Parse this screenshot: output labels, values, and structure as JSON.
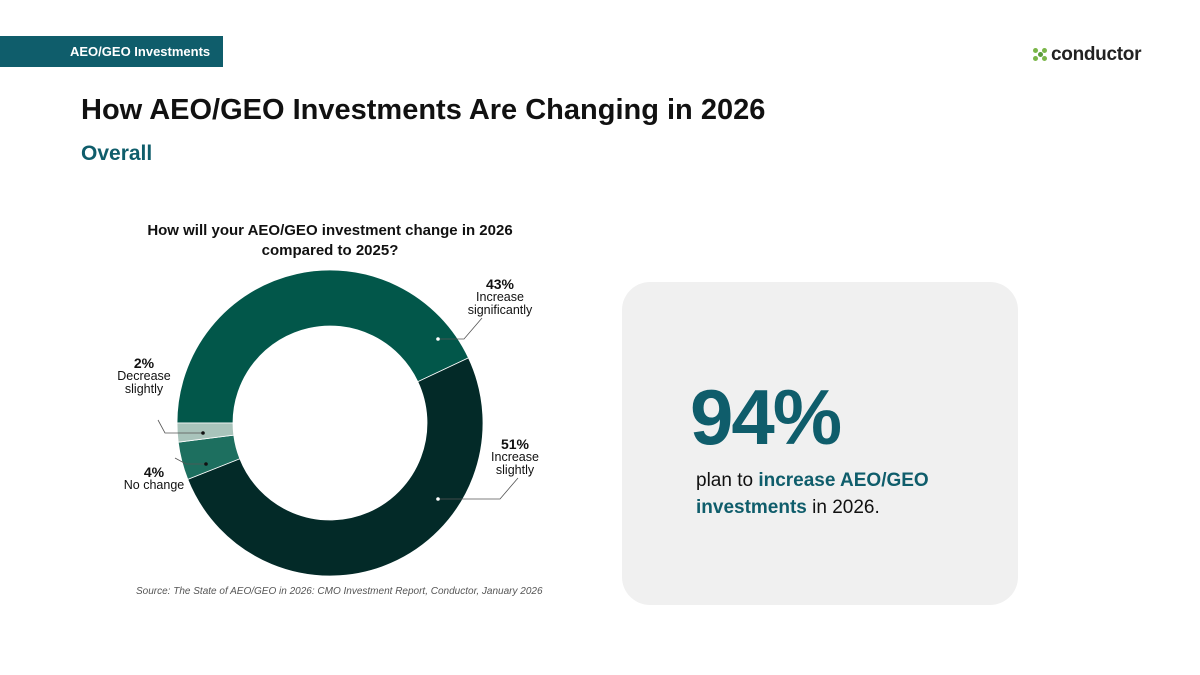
{
  "header": {
    "tag_label": "AEO/GEO Investments",
    "logo_text": "conductor",
    "title": "How AEO/GEO Investments Are Changing in 2026",
    "subtitle": "Overall"
  },
  "chart_data": {
    "type": "pie",
    "donut": true,
    "title": "How will your AEO/GEO investment change in 2026 compared to 2025?",
    "slices": [
      {
        "label": "Increase significantly",
        "value": 43,
        "value_label": "43%",
        "color": "#02574a"
      },
      {
        "label": "Increase slightly",
        "value": 51,
        "value_label": "51%",
        "color": "#032a28"
      },
      {
        "label": "No change",
        "value": 4,
        "value_label": "4%",
        "color": "#1d6f5f"
      },
      {
        "label": "Decrease slightly",
        "value": 2,
        "value_label": "2%",
        "color": "#a9c4bb"
      }
    ],
    "source": "Source: The State of AEO/GEO in 2026: CMO Investment Report, Conductor, January 2026"
  },
  "stat": {
    "value": "94%",
    "text_before": "plan to ",
    "text_highlight": "increase AEO/GEO investments",
    "text_after": " in 2026."
  },
  "colors": {
    "brand": "#0f5d6b",
    "card_bg": "#f0f0f0",
    "logo_green": "#7ab648"
  }
}
